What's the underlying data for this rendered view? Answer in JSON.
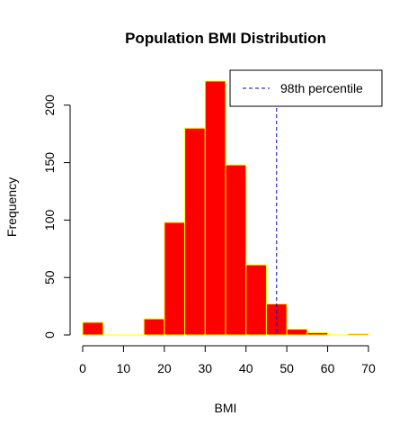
{
  "chart_data": {
    "type": "bar",
    "title": "Population BMI Distribution",
    "xlabel": "BMI",
    "ylabel": "Frequency",
    "bins": [
      {
        "start": 0,
        "end": 5,
        "count": 11
      },
      {
        "start": 5,
        "end": 10,
        "count": 0
      },
      {
        "start": 10,
        "end": 15,
        "count": 0
      },
      {
        "start": 15,
        "end": 20,
        "count": 14
      },
      {
        "start": 20,
        "end": 25,
        "count": 98
      },
      {
        "start": 25,
        "end": 30,
        "count": 180
      },
      {
        "start": 30,
        "end": 35,
        "count": 221
      },
      {
        "start": 35,
        "end": 40,
        "count": 148
      },
      {
        "start": 40,
        "end": 45,
        "count": 61
      },
      {
        "start": 45,
        "end": 50,
        "count": 27
      },
      {
        "start": 50,
        "end": 55,
        "count": 5
      },
      {
        "start": 55,
        "end": 60,
        "count": 2
      },
      {
        "start": 60,
        "end": 65,
        "count": 0
      },
      {
        "start": 65,
        "end": 70,
        "count": 1
      }
    ],
    "x_ticks": [
      0,
      10,
      20,
      30,
      40,
      50,
      60,
      70
    ],
    "y_ticks": [
      0,
      50,
      100,
      150,
      200
    ],
    "xlim": [
      0,
      70
    ],
    "ylim": [
      0,
      221
    ],
    "grid": false,
    "bar_fill_color": "#ff0000",
    "bar_border_color": "#ffff00",
    "reference_line": {
      "label": "98th percentile",
      "x": 47.5,
      "color": "#0000cc",
      "style": "dashed"
    },
    "legend": {
      "placement": "top-right",
      "entries": [
        "98th percentile"
      ]
    }
  }
}
